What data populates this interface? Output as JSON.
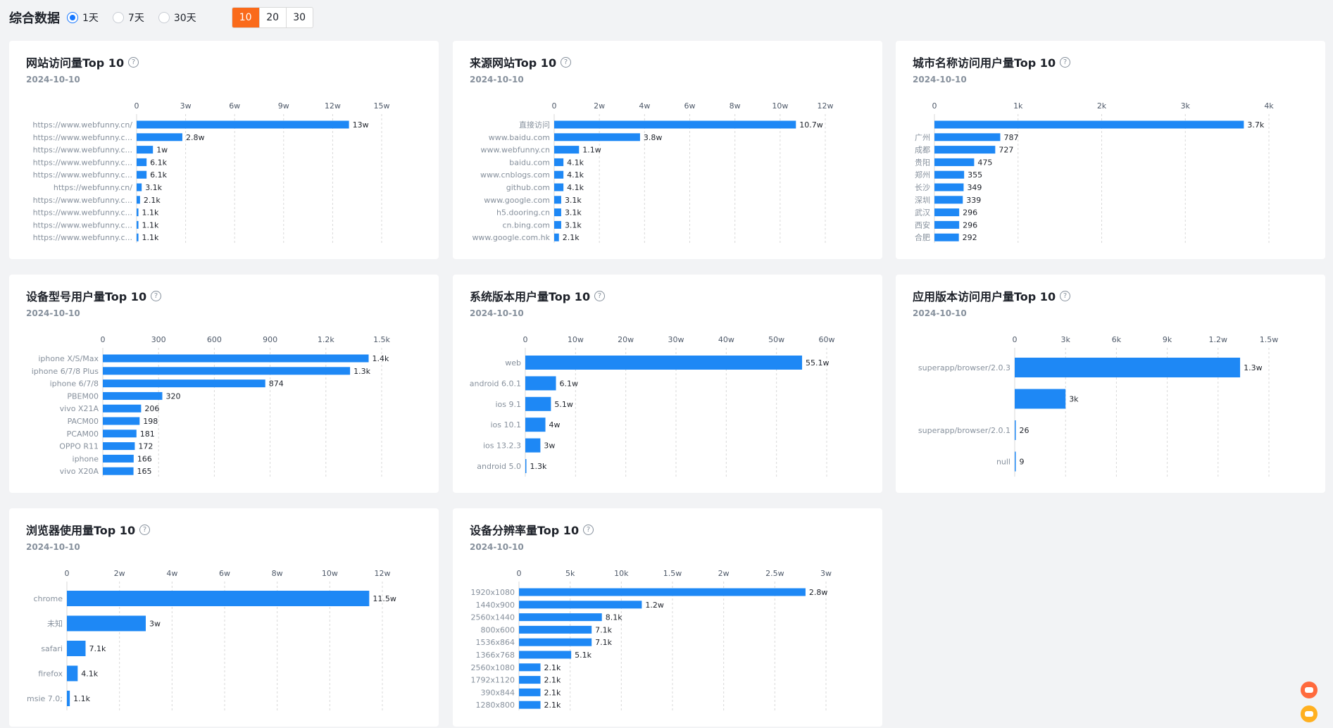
{
  "header": {
    "title": "综合数据",
    "radios": [
      "1天",
      "7天",
      "30天"
    ],
    "radio_selected": "1天",
    "segments": [
      "10",
      "20",
      "30"
    ],
    "segment_selected": "10"
  },
  "help_glyph": "?",
  "chart_data": [
    {
      "type": "bar",
      "title": "网站访问量Top 10",
      "date": "2024-10-10",
      "xlim": [
        0,
        150000
      ],
      "xticks": [
        "0",
        "3w",
        "6w",
        "9w",
        "12w",
        "15w"
      ],
      "categories": [
        "https://www.webfunny.cn/",
        "https://www.webfunny.c...",
        "https://www.webfunny.c...",
        "https://www.webfunny.c...",
        "https://www.webfunny.c...",
        "https://webfunny.cn/",
        "https://www.webfunny.c...",
        "https://www.webfunny.c...",
        "https://www.webfunny.c...",
        "https://www.webfunny.c..."
      ],
      "values": [
        130000,
        28000,
        10000,
        6100,
        6100,
        3100,
        2100,
        1100,
        1100,
        1100
      ],
      "labels": [
        "13w",
        "2.8w",
        "1w",
        "6.1k",
        "6.1k",
        "3.1k",
        "2.1k",
        "1.1k",
        "1.1k",
        "1.1k"
      ]
    },
    {
      "type": "bar",
      "title": "来源网站Top 10",
      "date": "2024-10-10",
      "xlim": [
        0,
        120000
      ],
      "xticks": [
        "0",
        "2w",
        "4w",
        "6w",
        "8w",
        "10w",
        "12w"
      ],
      "categories": [
        "直接访问",
        "www.baidu.com",
        "www.webfunny.cn",
        "baidu.com",
        "www.cnblogs.com",
        "github.com",
        "www.google.com",
        "h5.dooring.cn",
        "cn.bing.com",
        "www.google.com.hk"
      ],
      "values": [
        107000,
        38000,
        11000,
        4100,
        4100,
        4100,
        3100,
        3100,
        3100,
        2100
      ],
      "labels": [
        "10.7w",
        "3.8w",
        "1.1w",
        "4.1k",
        "4.1k",
        "4.1k",
        "3.1k",
        "3.1k",
        "3.1k",
        "2.1k"
      ]
    },
    {
      "type": "bar",
      "title": "城市名称访问用户量Top 10",
      "date": "2024-10-10",
      "xlim": [
        0,
        4000
      ],
      "xticks": [
        "0",
        "1k",
        "2k",
        "3k",
        "4k"
      ],
      "categories": [
        "",
        "广州",
        "成都",
        "贵阳",
        "郑州",
        "长沙",
        "深圳",
        "武汉",
        "西安",
        "合肥"
      ],
      "values": [
        3700,
        787,
        727,
        475,
        355,
        349,
        339,
        296,
        296,
        292
      ],
      "labels": [
        "3.7k",
        "787",
        "727",
        "475",
        "355",
        "349",
        "339",
        "296",
        "296",
        "292"
      ]
    },
    {
      "type": "bar",
      "title": "设备型号用户量Top 10",
      "date": "2024-10-10",
      "xlim": [
        0,
        1500
      ],
      "xticks": [
        "0",
        "300",
        "600",
        "900",
        "1.2k",
        "1.5k"
      ],
      "categories": [
        "iphone X/S/Max",
        "iphone 6/7/8 Plus",
        "iphone 6/7/8",
        "PBEM00",
        "vivo X21A",
        "PACM00",
        "PCAM00",
        "OPPO R11",
        "iphone",
        "vivo X20A"
      ],
      "values": [
        1430,
        1330,
        874,
        320,
        206,
        198,
        181,
        172,
        166,
        165
      ],
      "labels": [
        "1.4k",
        "1.3k",
        "874",
        "320",
        "206",
        "198",
        "181",
        "172",
        "166",
        "165"
      ]
    },
    {
      "type": "bar",
      "title": "系统版本用户量Top 10",
      "date": "2024-10-10",
      "xlim": [
        0,
        600000
      ],
      "xticks": [
        "0",
        "10w",
        "20w",
        "30w",
        "40w",
        "50w",
        "60w"
      ],
      "categories": [
        "web",
        "android 6.0.1",
        "ios 9.1",
        "ios 10.1",
        "ios 13.2.3",
        "android 5.0"
      ],
      "values": [
        551000,
        61000,
        51000,
        40000,
        30000,
        1300
      ],
      "labels": [
        "55.1w",
        "6.1w",
        "5.1w",
        "4w",
        "3w",
        "1.3k"
      ]
    },
    {
      "type": "bar",
      "title": "应用版本访问用户量Top 10",
      "date": "2024-10-10",
      "xlim": [
        0,
        15000
      ],
      "xticks": [
        "0",
        "3k",
        "6k",
        "9k",
        "1.2w",
        "1.5w"
      ],
      "categories": [
        "superapp/browser/2.0.3",
        "",
        "superapp/browser/2.0.1",
        "null"
      ],
      "values": [
        13300,
        3000,
        26,
        9
      ],
      "labels": [
        "1.3w",
        "3k",
        "26",
        "9"
      ]
    },
    {
      "type": "bar",
      "title": "浏览器使用量Top 10",
      "date": "2024-10-10",
      "xlim": [
        0,
        120000
      ],
      "xticks": [
        "0",
        "2w",
        "4w",
        "6w",
        "8w",
        "10w",
        "12w"
      ],
      "categories": [
        "chrome",
        "未知",
        "safari",
        "firefox",
        "msie 7.0;"
      ],
      "values": [
        115000,
        30000,
        7100,
        4100,
        1100
      ],
      "labels": [
        "11.5w",
        "3w",
        "7.1k",
        "4.1k",
        "1.1k"
      ]
    },
    {
      "type": "bar",
      "title": "设备分辨率量Top 10",
      "date": "2024-10-10",
      "xlim": [
        0,
        30000
      ],
      "xticks": [
        "0",
        "5k",
        "10k",
        "1.5w",
        "2w",
        "2.5w",
        "3w"
      ],
      "categories": [
        "1920x1080",
        "1440x900",
        "2560x1440",
        "800x600",
        "1536x864",
        "1366x768",
        "2560x1080",
        "1792x1120",
        "390x844",
        "1280x800"
      ],
      "values": [
        28000,
        12000,
        8100,
        7100,
        7100,
        5100,
        2100,
        2100,
        2100,
        2100
      ],
      "labels": [
        "2.8w",
        "1.2w",
        "8.1k",
        "7.1k",
        "7.1k",
        "5.1k",
        "2.1k",
        "2.1k",
        "2.1k",
        "2.1k"
      ]
    }
  ],
  "colors": {
    "bar": "#1e88f5",
    "accent": "#fa6a1a",
    "radio": "#1677ff"
  }
}
